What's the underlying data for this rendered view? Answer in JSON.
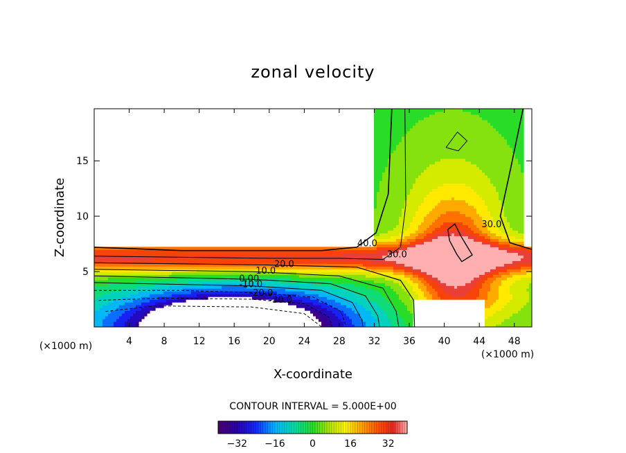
{
  "chart_data": {
    "type": "contour",
    "title": "zonal velocity",
    "xlabel": "X-coordinate",
    "ylabel": "Z-coordinate",
    "x_unit": "(×1000 m)",
    "xlim": [
      0,
      50
    ],
    "ylim": [
      0,
      19.7
    ],
    "xticks": [
      4,
      8,
      12,
      16,
      20,
      24,
      28,
      32,
      36,
      40,
      44,
      48
    ],
    "yticks": [
      5,
      10,
      15
    ],
    "contour_interval_text": "CONTOUR INTERVAL = 5.000E+00",
    "contour_interval": 5.0,
    "contour_labels": [
      {
        "text": "40.0",
        "x": 31.2,
        "z": 7.3
      },
      {
        "text": "30.0",
        "x": 34.6,
        "z": 6.3
      },
      {
        "text": "30.0",
        "x": 45.4,
        "z": 9.0
      },
      {
        "text": "20.0",
        "x": 21.7,
        "z": 5.4
      },
      {
        "text": "10.0",
        "x": 19.6,
        "z": 4.8
      },
      {
        "text": "0.00",
        "x": 17.7,
        "z": 4.1
      },
      {
        "text": "-10.0",
        "x": 17.9,
        "z": 3.6
      },
      {
        "text": "-20.0",
        "x": 19.1,
        "z": 2.8
      },
      {
        "text": "-30.0",
        "x": 21.3,
        "z": 2.2
      }
    ],
    "colorbar": {
      "range": [
        -40,
        40
      ],
      "ticks": [
        -32,
        -16,
        0,
        16,
        32
      ],
      "tick_labels": [
        "−32",
        "−16",
        "0",
        "16",
        "32"
      ]
    }
  }
}
